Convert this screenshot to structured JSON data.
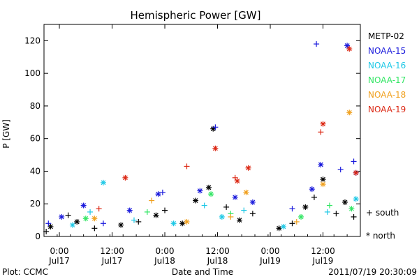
{
  "chart_data": {
    "type": "scatter",
    "title": "Hemispheric Power [GW]",
    "ylabel": "P [GW]",
    "xlabel": "Date and Time",
    "ylim": [
      0,
      130
    ],
    "yticks": [
      0,
      20,
      40,
      60,
      80,
      100,
      120
    ],
    "xlim": [
      "2011-07-16T20:30",
      "2011-07-19T20:30"
    ],
    "xticks": [
      {
        "t": "2011-07-17T00:00",
        "time": "0:00",
        "date": "Jul17"
      },
      {
        "t": "2011-07-17T12:00",
        "time": "12:00",
        "date": "Jul17"
      },
      {
        "t": "2011-07-18T00:00",
        "time": "0:00",
        "date": "Jul18"
      },
      {
        "t": "2011-07-18T12:00",
        "time": "12:00",
        "date": "Jul18"
      },
      {
        "t": "2011-07-19T00:00",
        "time": "0:00",
        "date": "Jul19"
      },
      {
        "t": "2011-07-19T12:00",
        "time": "12:00",
        "date": "Jul19"
      }
    ],
    "grid": false,
    "legend_position": "right",
    "series": [
      {
        "name": "METP-02",
        "color": "#000000"
      },
      {
        "name": "NOAA-15",
        "color": "#1a1adc"
      },
      {
        "name": "NOAA-16",
        "color": "#1ec8e6"
      },
      {
        "name": "NOAA-17",
        "color": "#32e664"
      },
      {
        "name": "NOAA-18",
        "color": "#f0a01e"
      },
      {
        "name": "NOAA-19",
        "color": "#dc2814"
      }
    ],
    "marker_key": [
      {
        "symbol": "+",
        "label": "south"
      },
      {
        "symbol": "*",
        "label": "north"
      }
    ],
    "points": [
      {
        "s": 0,
        "m": "+",
        "t": "2011-07-16T21:00",
        "y": 3
      },
      {
        "s": 0,
        "m": "*",
        "t": "2011-07-16T22:00",
        "y": 6
      },
      {
        "s": 0,
        "m": "+",
        "t": "2011-07-17T02:00",
        "y": 13
      },
      {
        "s": 0,
        "m": "*",
        "t": "2011-07-17T04:00",
        "y": 9
      },
      {
        "s": 0,
        "m": "+",
        "t": "2011-07-17T08:00",
        "y": 5
      },
      {
        "s": 0,
        "m": "*",
        "t": "2011-07-17T14:00",
        "y": 7
      },
      {
        "s": 0,
        "m": "+",
        "t": "2011-07-17T18:00",
        "y": 9
      },
      {
        "s": 0,
        "m": "*",
        "t": "2011-07-17T22:00",
        "y": 13
      },
      {
        "s": 0,
        "m": "+",
        "t": "2011-07-18T00:00",
        "y": 16
      },
      {
        "s": 0,
        "m": "*",
        "t": "2011-07-18T04:00",
        "y": 8
      },
      {
        "s": 0,
        "m": "*",
        "t": "2011-07-18T07:00",
        "y": 22
      },
      {
        "s": 0,
        "m": "*",
        "t": "2011-07-18T10:00",
        "y": 30
      },
      {
        "s": 0,
        "m": "*",
        "t": "2011-07-18T11:00",
        "y": 66
      },
      {
        "s": 0,
        "m": "+",
        "t": "2011-07-18T14:00",
        "y": 18
      },
      {
        "s": 0,
        "m": "*",
        "t": "2011-07-18T17:00",
        "y": 10
      },
      {
        "s": 0,
        "m": "+",
        "t": "2011-07-18T20:00",
        "y": 14
      },
      {
        "s": 0,
        "m": "*",
        "t": "2011-07-19T02:00",
        "y": 5
      },
      {
        "s": 0,
        "m": "+",
        "t": "2011-07-19T05:00",
        "y": 8
      },
      {
        "s": 0,
        "m": "*",
        "t": "2011-07-19T08:00",
        "y": 18
      },
      {
        "s": 0,
        "m": "+",
        "t": "2011-07-19T10:00",
        "y": 24
      },
      {
        "s": 0,
        "m": "*",
        "t": "2011-07-19T12:00",
        "y": 35
      },
      {
        "s": 0,
        "m": "+",
        "t": "2011-07-19T15:00",
        "y": 14
      },
      {
        "s": 0,
        "m": "*",
        "t": "2011-07-19T17:00",
        "y": 21
      },
      {
        "s": 0,
        "m": "+",
        "t": "2011-07-19T19:00",
        "y": 12
      },
      {
        "s": 1,
        "m": "+",
        "t": "2011-07-16T21:30",
        "y": 8
      },
      {
        "s": 1,
        "m": "*",
        "t": "2011-07-17T00:30",
        "y": 12
      },
      {
        "s": 1,
        "m": "*",
        "t": "2011-07-17T05:30",
        "y": 19
      },
      {
        "s": 1,
        "m": "+",
        "t": "2011-07-17T10:00",
        "y": 8
      },
      {
        "s": 1,
        "m": "*",
        "t": "2011-07-17T16:00",
        "y": 16
      },
      {
        "s": 1,
        "m": "*",
        "t": "2011-07-17T22:30",
        "y": 26
      },
      {
        "s": 1,
        "m": "+",
        "t": "2011-07-17T23:30",
        "y": 27
      },
      {
        "s": 1,
        "m": "*",
        "t": "2011-07-18T08:00",
        "y": 28
      },
      {
        "s": 1,
        "m": "+",
        "t": "2011-07-18T11:30",
        "y": 67
      },
      {
        "s": 1,
        "m": "*",
        "t": "2011-07-18T16:00",
        "y": 24
      },
      {
        "s": 1,
        "m": "*",
        "t": "2011-07-18T20:00",
        "y": 21
      },
      {
        "s": 1,
        "m": "+",
        "t": "2011-07-19T05:00",
        "y": 17
      },
      {
        "s": 1,
        "m": "*",
        "t": "2011-07-19T09:30",
        "y": 29
      },
      {
        "s": 1,
        "m": "+",
        "t": "2011-07-19T10:30",
        "y": 118
      },
      {
        "s": 1,
        "m": "*",
        "t": "2011-07-19T11:30",
        "y": 44
      },
      {
        "s": 1,
        "m": "+",
        "t": "2011-07-19T16:00",
        "y": 41
      },
      {
        "s": 1,
        "m": "*",
        "t": "2011-07-19T17:30",
        "y": 117
      },
      {
        "s": 1,
        "m": "+",
        "t": "2011-07-19T19:00",
        "y": 46
      },
      {
        "s": 1,
        "m": "*",
        "t": "2011-07-19T19:30",
        "y": 39
      },
      {
        "s": 2,
        "m": "*",
        "t": "2011-07-17T03:00",
        "y": 7
      },
      {
        "s": 2,
        "m": "+",
        "t": "2011-07-17T07:00",
        "y": 15
      },
      {
        "s": 2,
        "m": "*",
        "t": "2011-07-17T10:00",
        "y": 33
      },
      {
        "s": 2,
        "m": "+",
        "t": "2011-07-17T17:00",
        "y": 10
      },
      {
        "s": 2,
        "m": "*",
        "t": "2011-07-18T02:00",
        "y": 8
      },
      {
        "s": 2,
        "m": "+",
        "t": "2011-07-18T09:00",
        "y": 19
      },
      {
        "s": 2,
        "m": "*",
        "t": "2011-07-18T13:00",
        "y": 12
      },
      {
        "s": 2,
        "m": "+",
        "t": "2011-07-18T18:00",
        "y": 16
      },
      {
        "s": 2,
        "m": "*",
        "t": "2011-07-19T03:00",
        "y": 6
      },
      {
        "s": 2,
        "m": "+",
        "t": "2011-07-19T13:00",
        "y": 15
      },
      {
        "s": 2,
        "m": "*",
        "t": "2011-07-19T19:30",
        "y": 23
      },
      {
        "s": 3,
        "m": "*",
        "t": "2011-07-17T06:00",
        "y": 11
      },
      {
        "s": 3,
        "m": "+",
        "t": "2011-07-17T20:00",
        "y": 15
      },
      {
        "s": 3,
        "m": "*",
        "t": "2011-07-18T10:30",
        "y": 26
      },
      {
        "s": 3,
        "m": "+",
        "t": "2011-07-18T15:00",
        "y": 14
      },
      {
        "s": 3,
        "m": "*",
        "t": "2011-07-19T07:00",
        "y": 12
      },
      {
        "s": 3,
        "m": "+",
        "t": "2011-07-19T13:30",
        "y": 19
      },
      {
        "s": 3,
        "m": "*",
        "t": "2011-07-19T18:30",
        "y": 17
      },
      {
        "s": 4,
        "m": "*",
        "t": "2011-07-17T08:00",
        "y": 11
      },
      {
        "s": 4,
        "m": "+",
        "t": "2011-07-17T21:00",
        "y": 22
      },
      {
        "s": 4,
        "m": "*",
        "t": "2011-07-18T05:00",
        "y": 9
      },
      {
        "s": 4,
        "m": "+",
        "t": "2011-07-18T15:00",
        "y": 12
      },
      {
        "s": 4,
        "m": "*",
        "t": "2011-07-18T18:30",
        "y": 27
      },
      {
        "s": 4,
        "m": "+",
        "t": "2011-07-19T06:00",
        "y": 9
      },
      {
        "s": 4,
        "m": "*",
        "t": "2011-07-19T12:00",
        "y": 32
      },
      {
        "s": 4,
        "m": "*",
        "t": "2011-07-19T18:00",
        "y": 76
      },
      {
        "s": 5,
        "m": "+",
        "t": "2011-07-17T09:00",
        "y": 17
      },
      {
        "s": 5,
        "m": "*",
        "t": "2011-07-17T15:00",
        "y": 36
      },
      {
        "s": 5,
        "m": "+",
        "t": "2011-07-18T05:00",
        "y": 43
      },
      {
        "s": 5,
        "m": "*",
        "t": "2011-07-18T11:30",
        "y": 54
      },
      {
        "s": 5,
        "m": "+",
        "t": "2011-07-18T16:00",
        "y": 36
      },
      {
        "s": 5,
        "m": "*",
        "t": "2011-07-18T16:30",
        "y": 34
      },
      {
        "s": 5,
        "m": "*",
        "t": "2011-07-18T19:00",
        "y": 42
      },
      {
        "s": 5,
        "m": "+",
        "t": "2011-07-19T11:30",
        "y": 64
      },
      {
        "s": 5,
        "m": "*",
        "t": "2011-07-19T12:00",
        "y": 69
      },
      {
        "s": 5,
        "m": "*",
        "t": "2011-07-19T18:00",
        "y": 115
      },
      {
        "s": 5,
        "m": "*",
        "t": "2011-07-19T19:30",
        "y": 39
      }
    ]
  },
  "footer": {
    "left": "Plot: CCMC",
    "right": "2011/07/19 20:30:09"
  }
}
